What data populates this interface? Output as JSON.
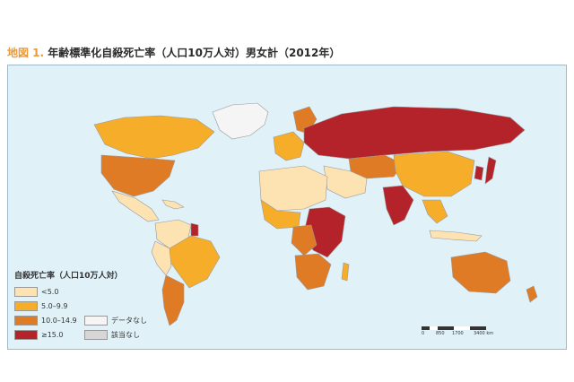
{
  "title": {
    "figure_label": "地図 1.",
    "text": "年齢標準化自殺死亡率（人口10万人対）男女計（2012年）"
  },
  "legend": {
    "title": "自殺死亡率（人口10万人対）",
    "items": [
      {
        "label": "<5.0",
        "color": "#fde2b2"
      },
      {
        "label": "5.0–9.9",
        "color": "#f6ad2a"
      },
      {
        "label": "10.0–14.9",
        "color": "#e07b25"
      },
      {
        "label": "≥15.0",
        "color": "#b5232a"
      },
      {
        "label": "データなし",
        "color": "#f5f5f5"
      },
      {
        "label": "該当なし",
        "color": "#d6d6d6"
      }
    ]
  },
  "scale_bar": {
    "ticks": [
      "0",
      "850",
      "1700",
      "3400 km"
    ]
  },
  "colors": {
    "ocean": "#e0f1f8",
    "band_lt5": "#fde2b2",
    "band_5_10": "#f6ad2a",
    "band_10_15": "#e07b25",
    "band_ge15": "#b5232a",
    "no_data": "#f5f5f5",
    "not_applicable": "#d6d6d6"
  }
}
